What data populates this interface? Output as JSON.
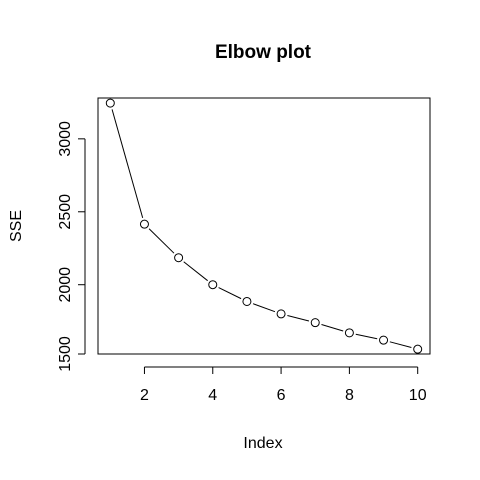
{
  "chart_data": {
    "type": "line",
    "title": "Elbow plot",
    "xlabel": "Index",
    "ylabel": "SSE",
    "x": [
      1,
      2,
      3,
      4,
      5,
      6,
      7,
      8,
      9,
      10
    ],
    "values": [
      3245,
      2415,
      2185,
      2000,
      1885,
      1800,
      1740,
      1670,
      1620,
      1558
    ],
    "xlim": [
      0.64,
      10.36
    ],
    "ylim": [
      1525,
      3280
    ],
    "x_ticks": [
      2,
      4,
      6,
      8,
      10
    ],
    "y_ticks": [
      1500,
      2000,
      2500,
      3000
    ],
    "grid": false,
    "legend": "none",
    "marker": "open-circle",
    "line_style": "connected (gapped around points)"
  }
}
